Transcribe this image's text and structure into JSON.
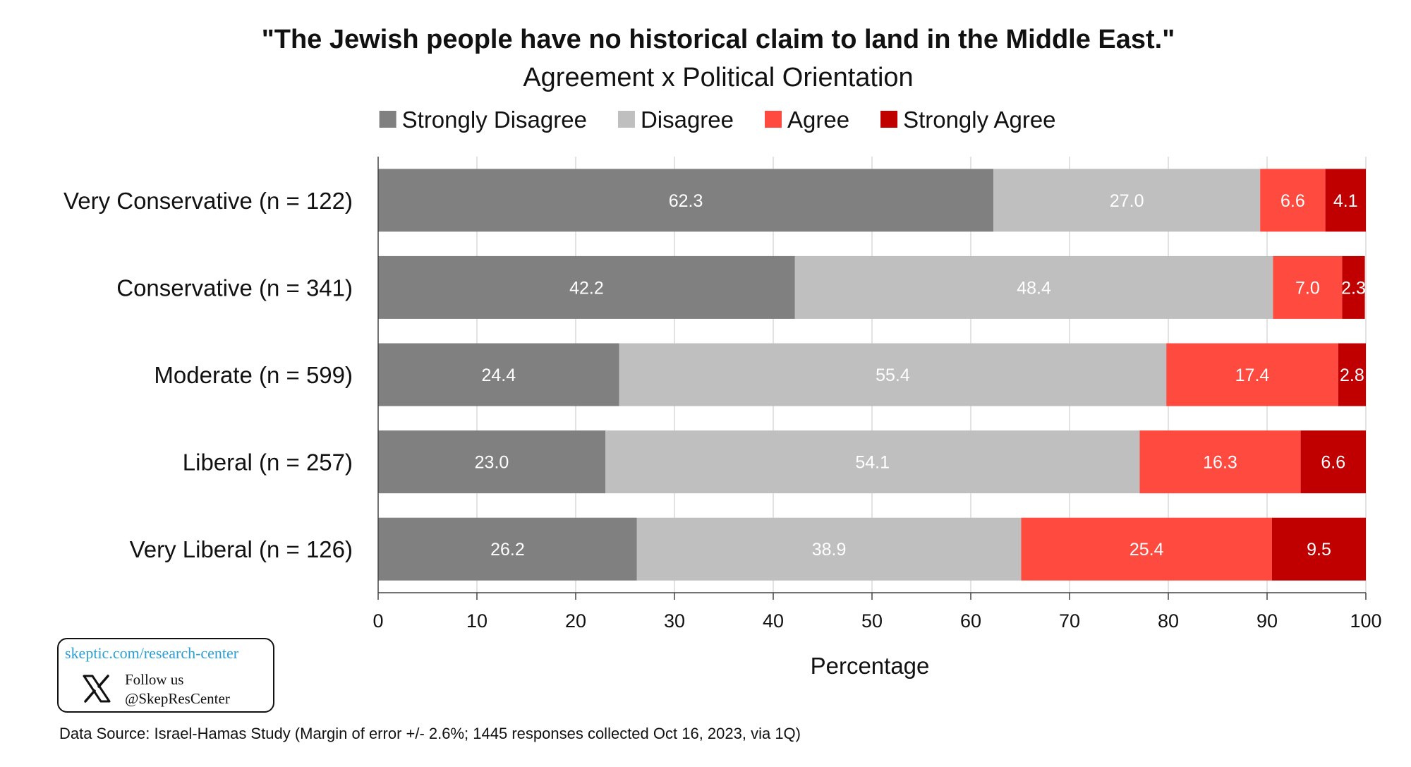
{
  "chart_data": {
    "type": "bar",
    "orientation": "horizontal",
    "stacked": true,
    "title": "\"The Jewish people have no historical claim to land in the Middle East.\"",
    "subtitle": "Agreement x Political Orientation",
    "xlabel": "Percentage",
    "ylabel": "",
    "xlim": [
      0,
      100
    ],
    "xticks": [
      "0",
      "10",
      "20",
      "30",
      "40",
      "50",
      "60",
      "70",
      "80",
      "90",
      "100"
    ],
    "grid": true,
    "legend_position": "top",
    "categories": [
      "Very Conservative (n = 122)",
      "Conservative (n = 341)",
      "Moderate (n = 599)",
      "Liberal (n = 257)",
      "Very Liberal (n = 126)"
    ],
    "series": [
      {
        "name": "Strongly Disagree",
        "color": "#808080",
        "label_color": "#ffffff",
        "values": [
          62.3,
          42.2,
          24.4,
          23.0,
          26.2
        ],
        "labels": [
          "62.3",
          "42.2",
          "24.4",
          "23.0",
          "26.2"
        ]
      },
      {
        "name": "Disagree",
        "color": "#bfbfbf",
        "label_color": "#ffffff",
        "values": [
          27.0,
          48.4,
          55.4,
          54.1,
          38.9
        ],
        "labels": [
          "27.0",
          "48.4",
          "55.4",
          "54.1",
          "38.9"
        ]
      },
      {
        "name": "Agree",
        "color": "#ff4a40",
        "label_color": "#ffffff",
        "values": [
          6.6,
          7.0,
          17.4,
          16.3,
          25.4
        ],
        "labels": [
          "6.6",
          "7.0",
          "17.4",
          "16.3",
          "25.4"
        ]
      },
      {
        "name": "Strongly Agree",
        "color": "#c00000",
        "label_color": "#ffffff",
        "values": [
          4.1,
          2.3,
          2.8,
          6.6,
          9.5
        ],
        "labels": [
          "4.1",
          "2.3",
          "2.8",
          "6.6",
          "9.5"
        ]
      }
    ]
  },
  "badge": {
    "url": "skeptic.com/research-center",
    "x_icon": "x-logo-icon",
    "follow_line1": "Follow us",
    "follow_line2": "@SkepResCenter"
  },
  "footer": {
    "source": "Data Source: Israel-Hamas Study (Margin of error +/- 2.6%; 1445 responses collected Oct 16, 2023, via 1Q)"
  }
}
